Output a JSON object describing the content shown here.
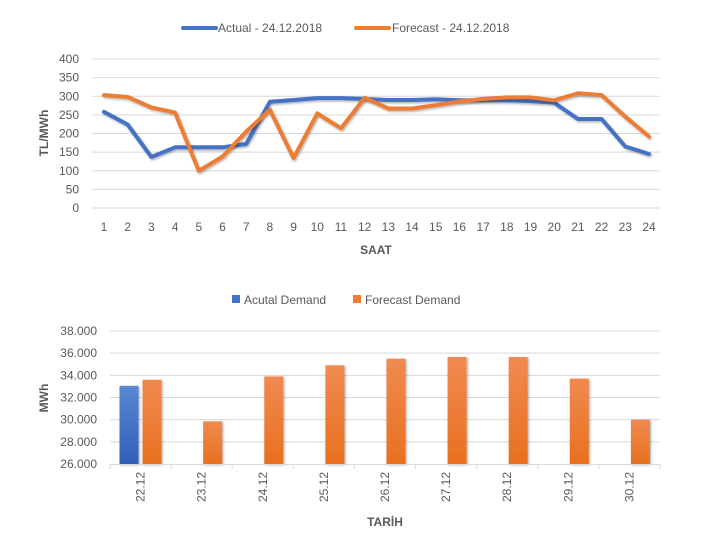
{
  "chart_data": [
    {
      "type": "line",
      "title": "",
      "xlabel": "SAAT",
      "ylabel": "TL/MWh",
      "ylim": [
        0,
        400
      ],
      "yticks": [
        "0",
        "50",
        "100",
        "150",
        "200",
        "250",
        "300",
        "350",
        "400"
      ],
      "ytick_values": [
        0,
        50,
        100,
        150,
        200,
        250,
        300,
        350,
        400
      ],
      "grid": true,
      "legend_position": "top",
      "categories": [
        "1",
        "2",
        "3",
        "4",
        "5",
        "6",
        "7",
        "8",
        "9",
        "10",
        "11",
        "12",
        "13",
        "14",
        "15",
        "16",
        "17",
        "18",
        "19",
        "20",
        "21",
        "22",
        "23",
        "24"
      ],
      "series": [
        {
          "name": "Actual - 24.12.2018",
          "color": "#4472C4",
          "values": [
            258,
            224,
            137,
            163,
            163,
            163,
            172,
            285,
            290,
            295,
            295,
            293,
            290,
            290,
            292,
            289,
            289,
            289,
            287,
            283,
            239,
            239,
            165,
            145
          ]
        },
        {
          "name": "Forecast - 24.12.2018",
          "color": "#ED7D31",
          "values": [
            303,
            298,
            270,
            256,
            100,
            138,
            205,
            264,
            134,
            254,
            214,
            296,
            267,
            267,
            276,
            286,
            293,
            297,
            297,
            289,
            308,
            303,
            245,
            192
          ]
        }
      ]
    },
    {
      "type": "bar",
      "title": "",
      "xlabel": "TARİH",
      "ylabel": "MWh",
      "ylim": [
        26000,
        38000
      ],
      "yticks": [
        "26.000",
        "28.000",
        "30.000",
        "32.000",
        "34.000",
        "36.000",
        "38.000"
      ],
      "ytick_values": [
        26000,
        28000,
        30000,
        32000,
        34000,
        36000,
        38000
      ],
      "grid": true,
      "legend_position": "top",
      "categories": [
        "22.12",
        "23.12",
        "24.12",
        "25.12",
        "26.12",
        "27.12",
        "28.12",
        "29.12",
        "30.12"
      ],
      "series": [
        {
          "name": "Acutal Demand",
          "color": "#4472C4",
          "values": [
            33050,
            null,
            null,
            null,
            null,
            null,
            null,
            null,
            null
          ]
        },
        {
          "name": "Forecast Demand",
          "color": "#ED7D31",
          "values": [
            33600,
            29850,
            33900,
            34900,
            35500,
            35650,
            35650,
            33700,
            30000
          ]
        }
      ]
    }
  ]
}
